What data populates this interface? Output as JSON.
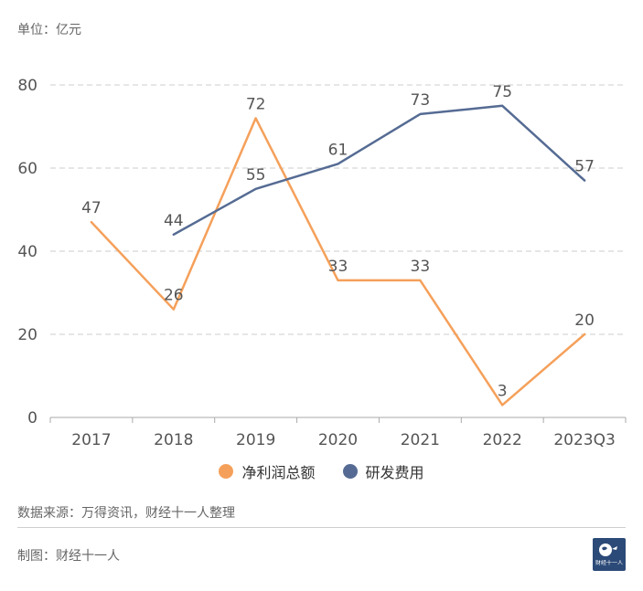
{
  "header": {
    "unit_label": "单位：亿元"
  },
  "chart_data": {
    "type": "line",
    "categories": [
      "2017",
      "2018",
      "2019",
      "2020",
      "2021",
      "2022",
      "2023Q3"
    ],
    "series": [
      {
        "name": "净利润总额",
        "color": "#f5a05a",
        "values": [
          47,
          26,
          72,
          33,
          33,
          3,
          20
        ]
      },
      {
        "name": "研发费用",
        "color": "#556b93",
        "values": [
          null,
          44,
          55,
          61,
          73,
          75,
          57
        ]
      }
    ],
    "yticks": [
      0,
      20,
      40,
      60,
      80
    ],
    "ylim": [
      0,
      80
    ],
    "grid": true,
    "legend": "bottom-center"
  },
  "footer": {
    "source": "数据来源：万得资讯，财经十一人整理",
    "credit": "制图：财经十一人",
    "logo_text": "财经十一人"
  }
}
